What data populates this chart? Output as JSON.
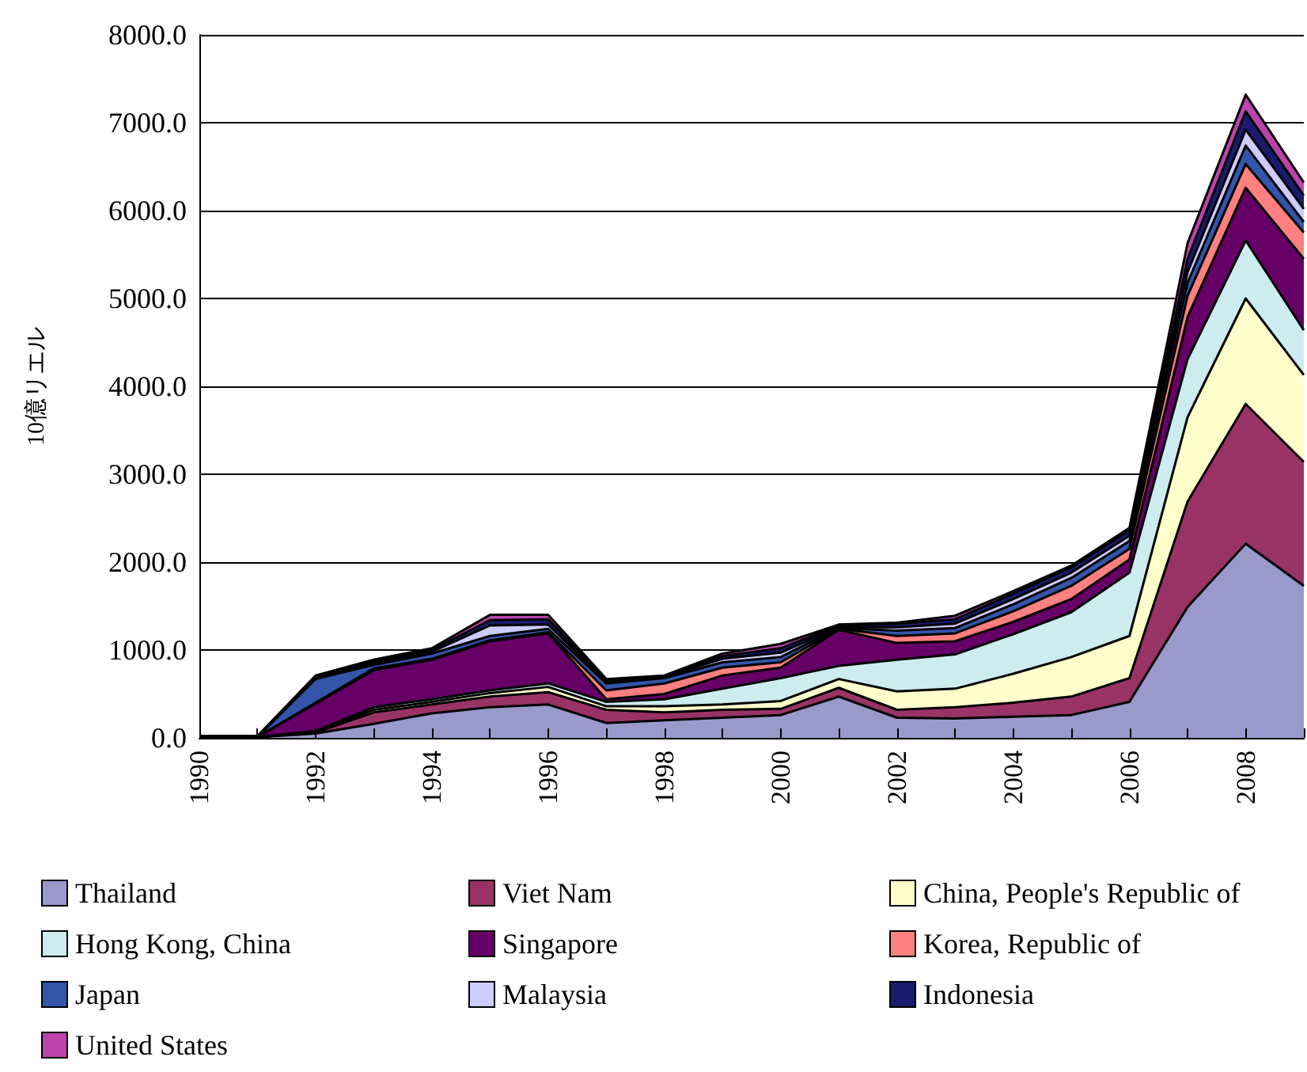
{
  "chart_data": {
    "type": "area",
    "stacked": true,
    "ylabel": "10億リエル",
    "x": [
      1990,
      1991,
      1992,
      1993,
      1994,
      1995,
      1996,
      1997,
      1998,
      1999,
      2000,
      2001,
      2002,
      2003,
      2004,
      2005,
      2006,
      2007,
      2008,
      2009
    ],
    "xlim": [
      1990,
      2009
    ],
    "xticks": [
      1990,
      {
        "value": 1991,
        "label": null
      },
      1992,
      {
        "value": 1993,
        "label": null
      },
      1994,
      {
        "value": 1995,
        "label": null
      },
      1996,
      {
        "value": 1997,
        "label": null
      },
      1998,
      {
        "value": 1999,
        "label": null
      },
      2000,
      {
        "value": 2001,
        "label": null
      },
      2002,
      {
        "value": 2003,
        "label": null
      },
      2004,
      {
        "value": 2005,
        "label": null
      },
      2006,
      {
        "value": 2007,
        "label": null
      },
      2008,
      {
        "value": 2009,
        "label": null
      }
    ],
    "ylim": [
      0,
      8000
    ],
    "yticks": [
      {
        "value": 0,
        "label": "0.0"
      },
      {
        "value": 1000,
        "label": "1000.0"
      },
      {
        "value": 2000,
        "label": "2000.0"
      },
      {
        "value": 3000,
        "label": "3000.0"
      },
      {
        "value": 4000,
        "label": "4000.0"
      },
      {
        "value": 5000,
        "label": "5000.0"
      },
      {
        "value": 6000,
        "label": "6000.0"
      },
      {
        "value": 7000,
        "label": "7000.0"
      },
      {
        "value": 8000,
        "label": "8000.0"
      }
    ],
    "grid": "y",
    "legend": "bottom",
    "series": [
      {
        "name": "Thailand",
        "color": "#9999cc",
        "values": [
          10,
          10,
          50,
          160,
          280,
          350,
          380,
          170,
          200,
          230,
          260,
          470,
          230,
          220,
          240,
          260,
          410,
          1490,
          2210,
          1730
        ]
      },
      {
        "name": "Viet Nam",
        "color": "#993366",
        "values": [
          0,
          0,
          10,
          130,
          100,
          120,
          140,
          150,
          90,
          90,
          70,
          100,
          90,
          130,
          160,
          210,
          270,
          1200,
          1590,
          1410
        ]
      },
      {
        "name": "China, People's Republic of",
        "color": "#ffffcc",
        "values": [
          0,
          0,
          10,
          30,
          30,
          40,
          60,
          40,
          70,
          60,
          90,
          100,
          210,
          210,
          330,
          450,
          480,
          960,
          1200,
          990
        ]
      },
      {
        "name": "Hong Kong, China",
        "color": "#ccecf0",
        "values": [
          0,
          0,
          10,
          30,
          30,
          30,
          40,
          50,
          80,
          180,
          260,
          150,
          360,
          390,
          450,
          510,
          720,
          660,
          660,
          510
        ]
      },
      {
        "name": "Singapore",
        "color": "#660066",
        "values": [
          0,
          0,
          310,
          420,
          450,
          560,
          570,
          30,
          60,
          150,
          120,
          410,
          190,
          150,
          140,
          150,
          150,
          480,
          600,
          810
        ]
      },
      {
        "name": "Korea, Republic of",
        "color": "#ff8080",
        "values": [
          0,
          0,
          10,
          20,
          10,
          10,
          10,
          100,
          120,
          90,
          60,
          10,
          80,
          90,
          120,
          150,
          120,
          240,
          270,
          300
        ]
      },
      {
        "name": "Japan",
        "color": "#3355aa",
        "values": [
          0,
          0,
          270,
          40,
          60,
          50,
          40,
          80,
          60,
          60,
          60,
          10,
          60,
          60,
          80,
          90,
          90,
          150,
          210,
          120
        ]
      },
      {
        "name": "Malaysia",
        "color": "#ccccff",
        "values": [
          0,
          0,
          10,
          20,
          20,
          120,
          50,
          20,
          10,
          40,
          50,
          10,
          40,
          50,
          60,
          60,
          60,
          120,
          180,
          150
        ]
      },
      {
        "name": "Indonesia",
        "color": "#1a1a6e",
        "values": [
          10,
          10,
          20,
          20,
          20,
          60,
          60,
          10,
          10,
          30,
          50,
          20,
          40,
          50,
          60,
          60,
          60,
          150,
          210,
          150
        ]
      },
      {
        "name": "United States",
        "color": "#bb44aa",
        "values": [
          0,
          0,
          10,
          20,
          20,
          60,
          50,
          20,
          10,
          30,
          50,
          10,
          10,
          40,
          30,
          20,
          30,
          180,
          190,
          150
        ]
      }
    ]
  }
}
